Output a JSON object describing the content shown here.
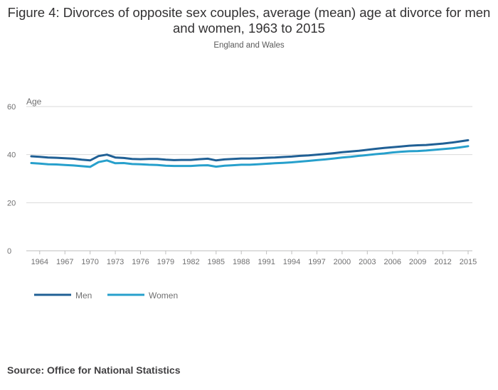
{
  "title": "Figure 4: Divorces of opposite sex couples, average (mean) age at divorce for men and women, 1963 to 2015",
  "subtitle": "England and Wales",
  "source": "Source: Office for National Statistics",
  "colors": {
    "men": "#206095",
    "women": "#27a0cc",
    "grid": "#d9d9d9",
    "axis": "#bebebe"
  },
  "chart_data": {
    "type": "line",
    "title": "Figure 4: Divorces of opposite sex couples, average (mean) age at divorce for men and women, 1963 to 2015",
    "subtitle": "England and Wales",
    "ylabel": "Age",
    "xlabel": "",
    "ylim": [
      0,
      60
    ],
    "yticks": [
      0,
      20,
      40,
      60
    ],
    "xlim": [
      1963,
      2015
    ],
    "xticks": [
      1964,
      1967,
      1970,
      1973,
      1976,
      1979,
      1982,
      1985,
      1988,
      1991,
      1994,
      1997,
      2000,
      2003,
      2006,
      2009,
      2012,
      2015
    ],
    "grid": true,
    "legend_position": "bottom-left",
    "x": [
      1963,
      1964,
      1965,
      1966,
      1967,
      1968,
      1969,
      1970,
      1971,
      1972,
      1973,
      1974,
      1975,
      1976,
      1977,
      1978,
      1979,
      1980,
      1981,
      1982,
      1983,
      1984,
      1985,
      1986,
      1987,
      1988,
      1989,
      1990,
      1991,
      1992,
      1993,
      1994,
      1995,
      1996,
      1997,
      1998,
      1999,
      2000,
      2001,
      2002,
      2003,
      2004,
      2005,
      2006,
      2007,
      2008,
      2009,
      2010,
      2011,
      2012,
      2013,
      2014,
      2015
    ],
    "series": [
      {
        "name": "Men",
        "values": [
          39.3,
          39.1,
          38.8,
          38.7,
          38.5,
          38.3,
          37.9,
          37.6,
          39.4,
          40.0,
          38.8,
          38.6,
          38.2,
          38.1,
          38.2,
          38.2,
          37.9,
          37.7,
          37.8,
          37.8,
          38.1,
          38.3,
          37.6,
          38.0,
          38.2,
          38.4,
          38.4,
          38.5,
          38.7,
          38.8,
          39.0,
          39.2,
          39.5,
          39.7,
          40.0,
          40.3,
          40.6,
          41.0,
          41.3,
          41.6,
          42.0,
          42.4,
          42.8,
          43.1,
          43.4,
          43.7,
          43.9,
          44.0,
          44.3,
          44.6,
          45.0,
          45.5,
          46.0
        ]
      },
      {
        "name": "Women",
        "values": [
          36.5,
          36.3,
          36.0,
          35.9,
          35.7,
          35.5,
          35.2,
          34.9,
          36.9,
          37.6,
          36.4,
          36.5,
          36.1,
          36.0,
          35.8,
          35.7,
          35.4,
          35.3,
          35.3,
          35.3,
          35.5,
          35.6,
          35.0,
          35.4,
          35.6,
          35.8,
          35.8,
          36.0,
          36.2,
          36.4,
          36.6,
          36.8,
          37.1,
          37.4,
          37.7,
          38.0,
          38.4,
          38.8,
          39.1,
          39.5,
          39.8,
          40.2,
          40.5,
          40.9,
          41.2,
          41.4,
          41.5,
          41.7,
          42.0,
          42.3,
          42.6,
          43.0,
          43.5
        ]
      }
    ]
  }
}
